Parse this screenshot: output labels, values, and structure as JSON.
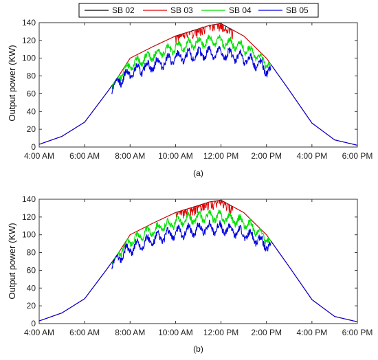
{
  "figure": {
    "legend": [
      {
        "name": "SB 02",
        "color": "#000000"
      },
      {
        "name": "SB 03",
        "color": "#e00000"
      },
      {
        "name": "SB 04",
        "color": "#00e000"
      },
      {
        "name": "SB 05",
        "color": "#0000e0"
      }
    ],
    "legend_placement": "top-center"
  },
  "chart_data": [
    {
      "type": "line",
      "panel": "a",
      "caption": "(a)",
      "ylabel": "Output power (KW)",
      "xlabel": "",
      "xticks": [
        "4:00 AM",
        "6:00 AM",
        "8:00 AM",
        "10:00 AM",
        "12:00 PM",
        "2:00 PM",
        "4:00 PM",
        "6:00 PM"
      ],
      "xlim": [
        4,
        18
      ],
      "ylim": [
        0,
        140
      ],
      "yticks": [
        0,
        20,
        40,
        60,
        80,
        100,
        120,
        140
      ],
      "grid": false,
      "series": [
        {
          "name": "SB 02",
          "color": "#000000",
          "x": [
            4,
            5,
            6,
            7,
            7.5,
            8,
            9,
            10,
            11,
            11.5,
            12,
            13,
            14,
            15,
            16,
            17,
            18
          ],
          "y": [
            3,
            12,
            28,
            62,
            80,
            100,
            113,
            125,
            133,
            137,
            139,
            125,
            100,
            64,
            27,
            8,
            2
          ]
        },
        {
          "name": "SB 03",
          "color": "#e00000",
          "x": [
            4,
            5,
            6,
            7,
            7.5,
            8,
            9,
            10,
            11,
            11.5,
            12,
            13,
            14,
            15,
            16,
            17,
            18
          ],
          "y": [
            3,
            12,
            28,
            62,
            80,
            100,
            113,
            125,
            133,
            137,
            139,
            125,
            100,
            64,
            27,
            8,
            2
          ]
        },
        {
          "name": "SB 04",
          "color": "#00e000",
          "x": [
            7.2,
            7.5,
            8,
            8.5,
            9,
            9.5,
            10,
            10.5,
            11,
            11.5,
            12,
            12.5,
            13,
            13.5,
            14,
            14.2
          ],
          "y": [
            70,
            80,
            92,
            98,
            103,
            108,
            112,
            115,
            117,
            119,
            118,
            116,
            112,
            105,
            95,
            92
          ]
        },
        {
          "name": "SB 05",
          "color": "#0000e0",
          "x": [
            7.2,
            7.5,
            8,
            8.5,
            9,
            9.5,
            10,
            10.5,
            11,
            11.5,
            12,
            12.5,
            13,
            13.5,
            14,
            14.2
          ],
          "y": [
            68,
            75,
            83,
            88,
            92,
            96,
            100,
            102,
            104,
            106,
            105,
            103,
            100,
            95,
            87,
            84
          ]
        }
      ]
    },
    {
      "type": "line",
      "panel": "b",
      "caption": "(b)",
      "ylabel": "Output power (KW)",
      "xlabel": "",
      "xticks": [
        "4:00 AM",
        "6:00 AM",
        "8:00 AM",
        "10:00 AM",
        "12:00 PM",
        "2:00 PM",
        "4:00 PM",
        "6:00 PM"
      ],
      "xlim": [
        4,
        18
      ],
      "ylim": [
        0,
        140
      ],
      "yticks": [
        0,
        20,
        40,
        60,
        80,
        100,
        120,
        140
      ],
      "grid": false,
      "series": [
        {
          "name": "SB 02",
          "color": "#000000",
          "x": [
            4,
            5,
            6,
            7,
            7.5,
            8,
            9,
            10,
            11,
            11.5,
            12,
            13,
            14,
            15,
            16,
            17,
            18
          ],
          "y": [
            3,
            12,
            28,
            62,
            80,
            100,
            113,
            125,
            133,
            137,
            139,
            125,
            100,
            64,
            27,
            8,
            2
          ]
        },
        {
          "name": "SB 03",
          "color": "#e00000",
          "x": [
            4,
            5,
            6,
            7,
            7.5,
            8,
            9,
            10,
            11,
            11.5,
            12,
            13,
            14,
            15,
            16,
            17,
            18
          ],
          "y": [
            3,
            12,
            28,
            62,
            80,
            100,
            113,
            125,
            133,
            137,
            139,
            125,
            100,
            64,
            27,
            8,
            2
          ]
        },
        {
          "name": "SB 04",
          "color": "#00e000",
          "x": [
            7.2,
            7.5,
            8,
            8.5,
            9,
            9.5,
            10,
            10.5,
            11,
            11.5,
            12,
            12.5,
            13,
            13.5,
            14,
            14.2
          ],
          "y": [
            70,
            80,
            93,
            100,
            105,
            110,
            114,
            117,
            119,
            121,
            120,
            118,
            114,
            106,
            96,
            93
          ]
        },
        {
          "name": "SB 05",
          "color": "#0000e0",
          "x": [
            7.2,
            7.5,
            8,
            8.5,
            9,
            9.5,
            10,
            10.5,
            11,
            11.5,
            12,
            12.5,
            13,
            13.5,
            14,
            14.2
          ],
          "y": [
            68,
            75,
            84,
            90,
            94,
            98,
            102,
            104,
            106,
            108,
            107,
            105,
            101,
            96,
            88,
            85
          ]
        }
      ]
    }
  ]
}
